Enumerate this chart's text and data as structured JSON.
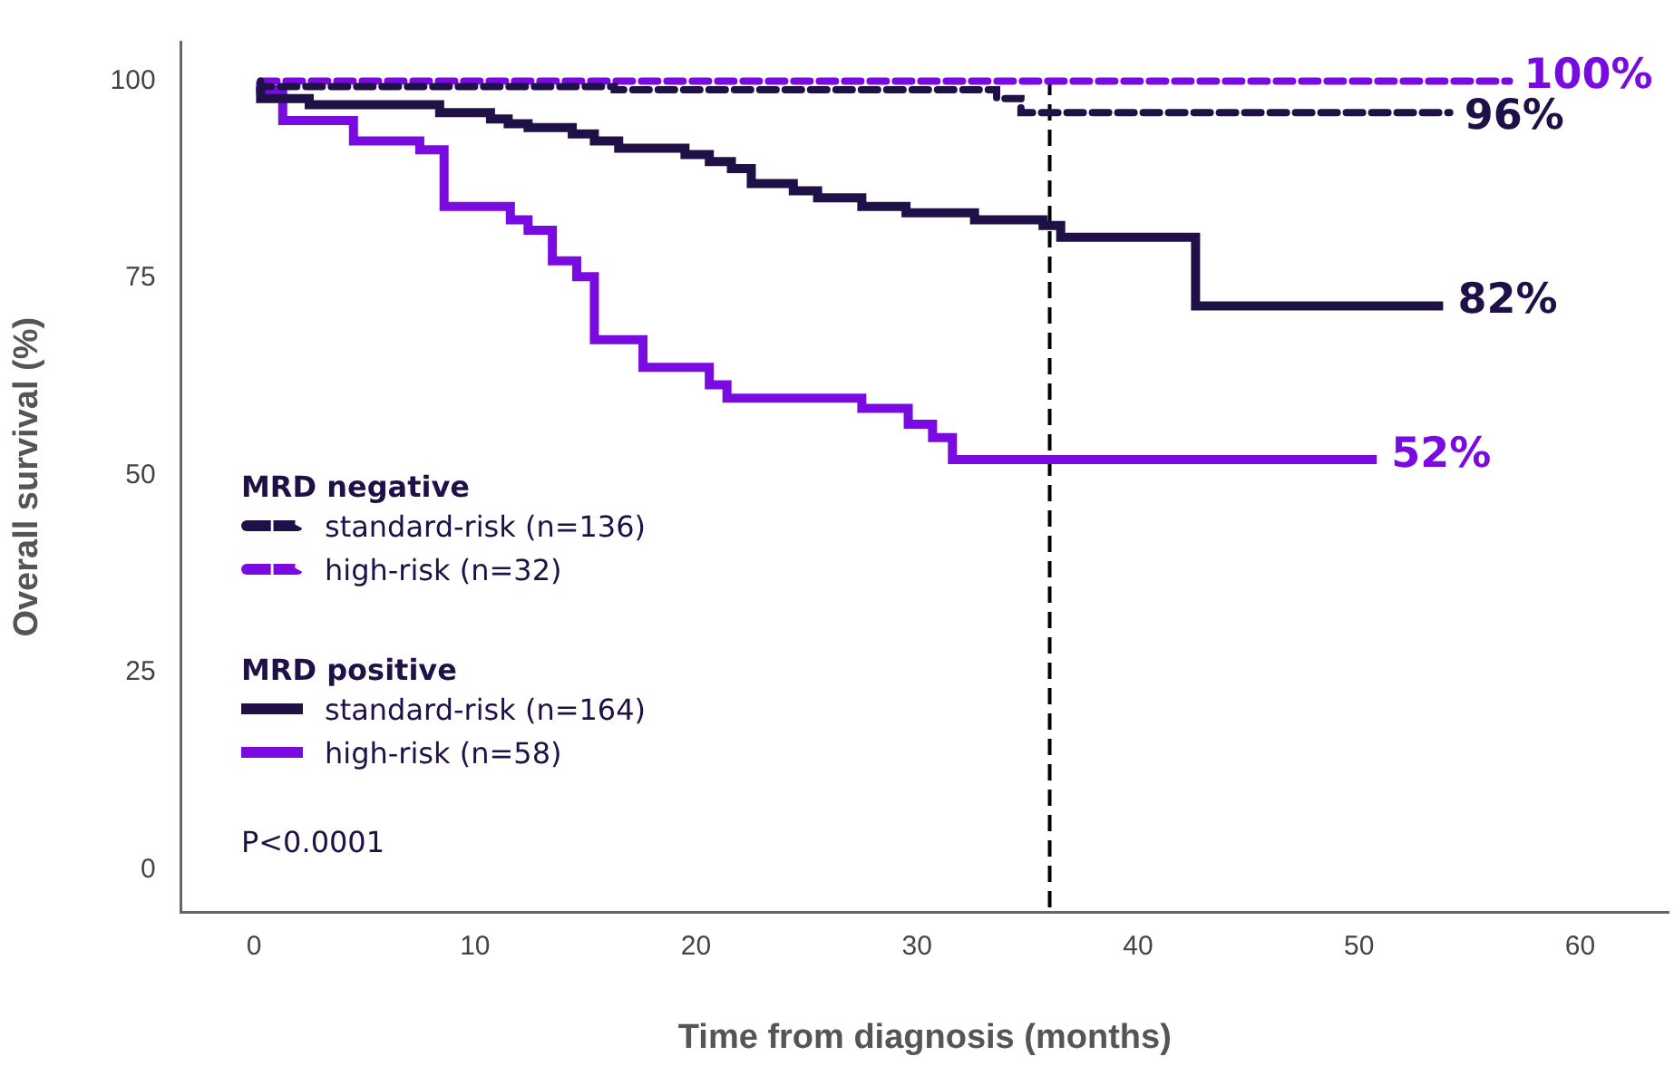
{
  "chart_data": {
    "type": "step",
    "xlabel": "Time from diagnosis (months)",
    "ylabel": "Overall survival (%)",
    "xlim": [
      -3.3,
      64
    ],
    "ylim": [
      -5.4,
      105
    ],
    "xticks": [
      0,
      10,
      20,
      30,
      40,
      50,
      60
    ],
    "yticks": [
      0,
      25,
      50,
      75,
      100
    ],
    "grid": false,
    "legend": "left",
    "line_style": "solid",
    "marker": "none",
    "series": [
      {
        "name": "standard-risk (n=136)",
        "color": "#1f1147",
        "line_style": "dashed",
        "x": [
          0.3,
          16.3,
          33.6,
          34.7,
          41.8,
          54.1
        ],
        "values": [
          100,
          99.3,
          98.9,
          97.8,
          96,
          96
        ]
      },
      {
        "name": "high-risk (n=32)",
        "color": "#7a0be0",
        "line_style": "dashed",
        "x": [
          0.3,
          56.8
        ],
        "values": [
          100,
          100
        ]
      },
      {
        "name": "standard-risk (n=164)",
        "color": "#1f1147",
        "x": [
          0.3,
          2.5,
          8.4,
          10.7,
          11.5,
          12.4,
          14.4,
          15.4,
          16.5,
          19.5,
          20.6,
          21.6,
          22.5,
          24.4,
          25.5,
          27.5,
          29.5,
          32.6,
          35.7,
          36.5,
          42.6,
          51.6,
          53.8
        ],
        "values": [
          99.3,
          97.8,
          97,
          96,
          95.2,
          94.6,
          94.1,
          93.3,
          92.4,
          91.5,
          90.7,
          89.8,
          88.9,
          87,
          86.1,
          85.2,
          84.1,
          83.3,
          82.4,
          81.7,
          80.2,
          71.5,
          71.5
        ]
      },
      {
        "name": "high-risk (n=58)",
        "color": "#7a0be0",
        "x": [
          0.3,
          1.3,
          4.5,
          7.5,
          8.6,
          11.6,
          12.4,
          13.5,
          14.6,
          15.4,
          17.6,
          20.6,
          21.4,
          27.5,
          29.6,
          30.7,
          31.6,
          36.6,
          50.8
        ],
        "values": [
          100,
          98.9,
          95,
          92.4,
          91.3,
          84.1,
          82.4,
          81.1,
          77.2,
          75.2,
          67.2,
          63.7,
          61.5,
          59.8,
          58.5,
          56.5,
          54.8,
          52,
          52
        ]
      }
    ],
    "ref_lines": [
      {
        "axis": "x",
        "value": 36,
        "color": "#000000",
        "line_style": "dashed"
      }
    ],
    "annotations": [
      "96%",
      "100%",
      "82%",
      "52%",
      "MRD negative",
      "MRD positive",
      "P<0.0001"
    ]
  }
}
